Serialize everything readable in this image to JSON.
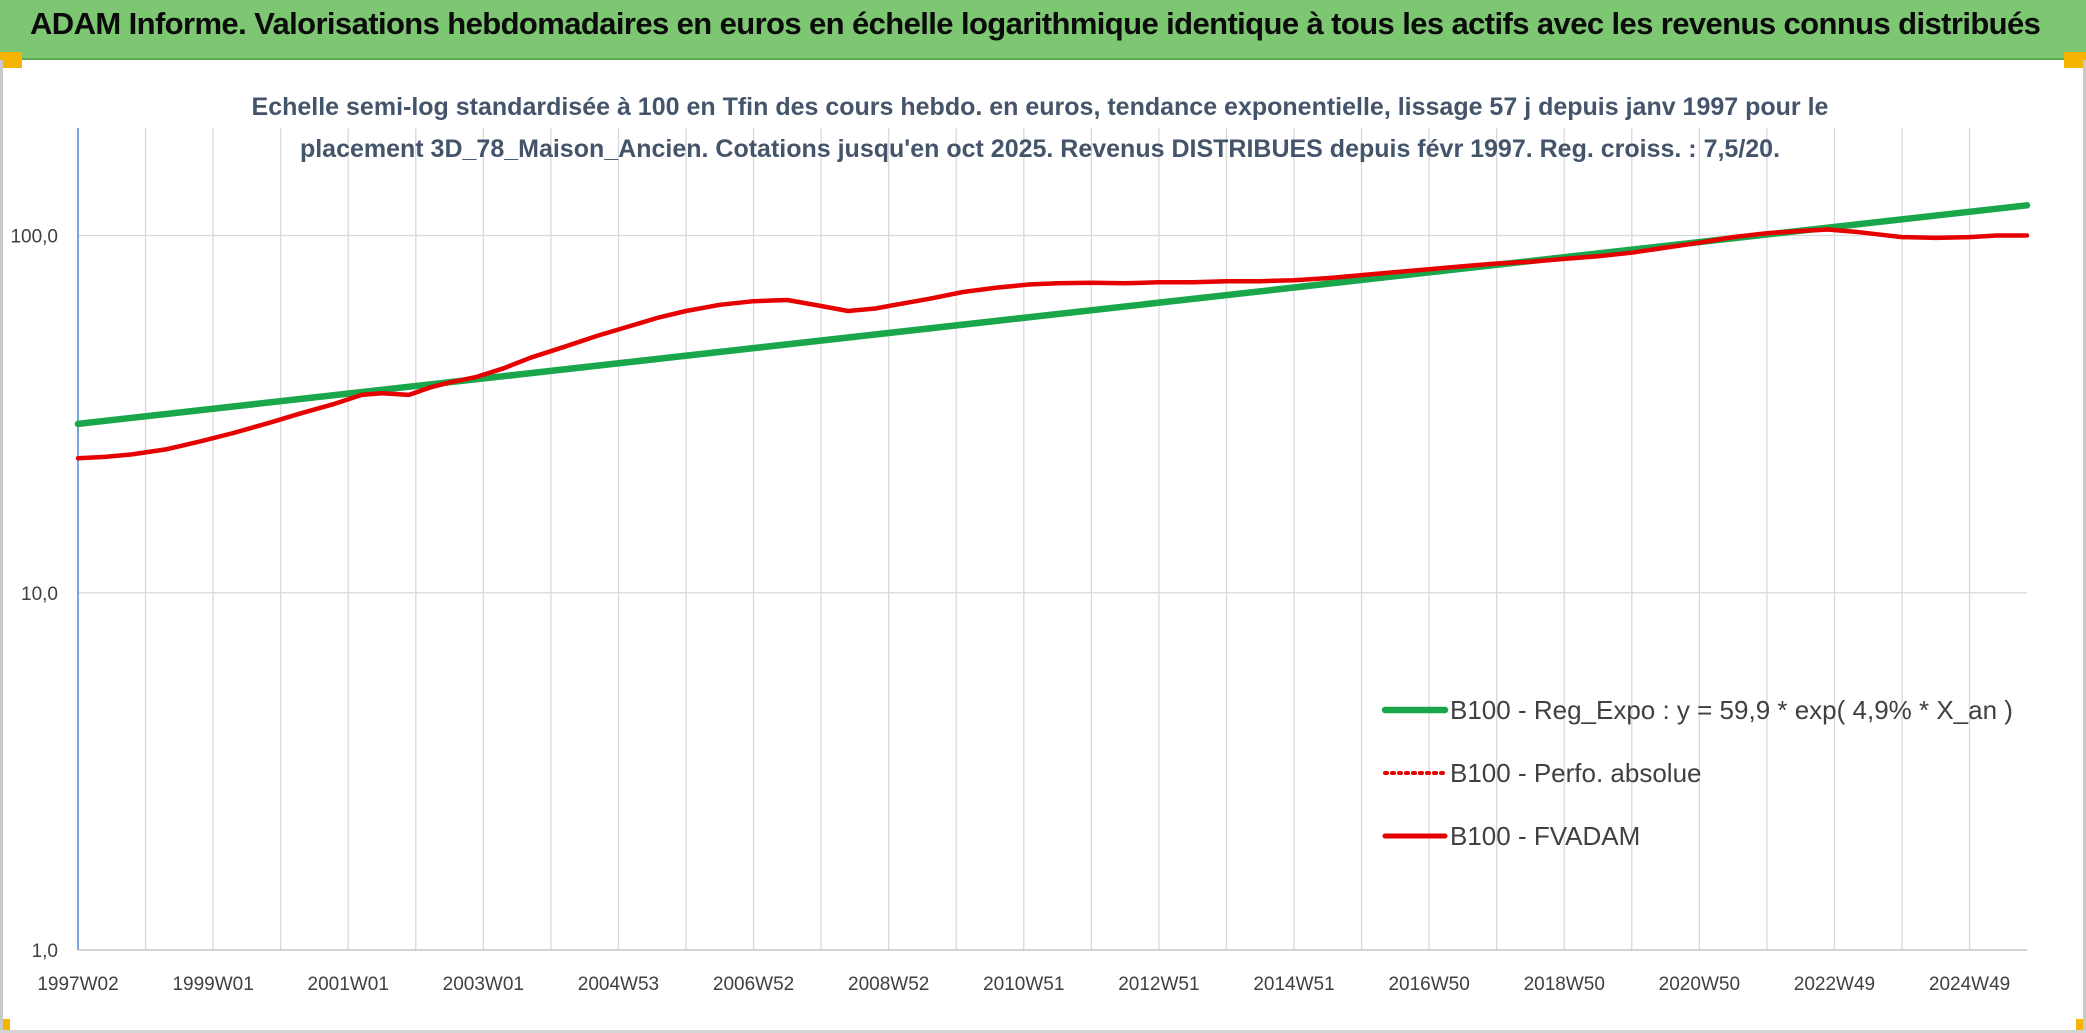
{
  "banner": {
    "title": "ADAM Informe. Valorisations hebdomadaires en euros en échelle logarithmique identique à tous les actifs avec les revenus connus distribués"
  },
  "colors": {
    "banner_bg": "#7dc672",
    "trend": "#1aa64b",
    "fvadam": "#e60000",
    "perfo": "#e60000",
    "grid": "#d9d9d9",
    "axis": "#5b8fd6"
  },
  "chart_data": {
    "type": "line",
    "scale": "log",
    "subtitle": [
      "Echelle semi-log standardisée à 100 en Tfin des cours hebdo. en euros, tendance exponentielle, lissage 57 j depuis janv 1997 pour le",
      "placement 3D_78_Maison_Ancien. Cotations jusqu'en oct 2025. Revenus DISTRIBUES depuis févr 1997. Reg. croiss. : 7,5/20."
    ],
    "xlim": [
      1997.0,
      2025.85
    ],
    "ylim": [
      1,
      200
    ],
    "y_ticks": [
      {
        "value": 1,
        "label": "1,0"
      },
      {
        "value": 10,
        "label": "10,0"
      },
      {
        "value": 100,
        "label": "100,0"
      }
    ],
    "x_ticks": [
      {
        "value": 1997.0,
        "label": "1997W02"
      },
      {
        "value": 1999.0,
        "label": "1999W01"
      },
      {
        "value": 2001.0,
        "label": "2001W01"
      },
      {
        "value": 2003.0,
        "label": "2003W01"
      },
      {
        "value": 2005.0,
        "label": "2004W53"
      },
      {
        "value": 2007.0,
        "label": "2006W52"
      },
      {
        "value": 2009.0,
        "label": "2008W52"
      },
      {
        "value": 2011.0,
        "label": "2010W51"
      },
      {
        "value": 2013.0,
        "label": "2012W51"
      },
      {
        "value": 2015.0,
        "label": "2014W51"
      },
      {
        "value": 2017.0,
        "label": "2016W50"
      },
      {
        "value": 2019.0,
        "label": "2018W50"
      },
      {
        "value": 2021.0,
        "label": "2020W50"
      },
      {
        "value": 2023.0,
        "label": "2022W49"
      },
      {
        "value": 2025.0,
        "label": "2024W49"
      }
    ],
    "grid_x_every_year": true,
    "legend_position": "bottom-right",
    "series": [
      {
        "name": "B100 - Reg_Expo : y = 59,9 * exp( 4,9% *  X_an )",
        "style": "solid-thick",
        "color": "#1aa64b",
        "x": [
          1997.0,
          2025.85
        ],
        "y": [
          29.7,
          121.5
        ]
      },
      {
        "name": "B100 - Perfo. absolue",
        "style": "dotted",
        "color": "#e60000",
        "x": [],
        "y": []
      },
      {
        "name": "B100 - FVADAM",
        "style": "solid",
        "color": "#e60000",
        "x": [
          1997.0,
          1997.4,
          1997.8,
          1998.3,
          1998.8,
          1999.3,
          1999.8,
          2000.3,
          2000.8,
          2001.2,
          2001.5,
          2001.9,
          2002.2,
          2002.5,
          2002.9,
          2003.3,
          2003.7,
          2004.2,
          2004.7,
          2005.2,
          2005.6,
          2006.0,
          2006.5,
          2007.0,
          2007.5,
          2008.0,
          2008.4,
          2008.8,
          2009.1,
          2009.6,
          2010.1,
          2010.6,
          2011.1,
          2011.5,
          2012.0,
          2012.5,
          2013.0,
          2013.5,
          2014.0,
          2014.5,
          2015.0,
          2015.5,
          2016.0,
          2016.5,
          2017.0,
          2017.5,
          2018.0,
          2018.5,
          2019.0,
          2019.5,
          2020.0,
          2020.5,
          2021.0,
          2021.5,
          2022.0,
          2022.5,
          2022.9,
          2023.3,
          2023.7,
          2024.0,
          2024.5,
          2025.0,
          2025.4,
          2025.85
        ],
        "y": [
          23.8,
          24.0,
          24.4,
          25.2,
          26.5,
          28.0,
          29.8,
          31.8,
          33.8,
          35.8,
          36.2,
          35.8,
          37.5,
          38.8,
          40.2,
          42.5,
          45.5,
          48.8,
          52.5,
          56.0,
          59.0,
          61.5,
          64.0,
          65.5,
          66.0,
          63.5,
          61.5,
          62.5,
          64.0,
          66.5,
          69.5,
          71.5,
          73.0,
          73.5,
          73.8,
          73.5,
          74.0,
          74.0,
          74.5,
          74.5,
          75.0,
          76.0,
          77.5,
          79.0,
          80.5,
          82.0,
          83.5,
          84.5,
          86.0,
          87.5,
          89.5,
          92.5,
          95.5,
          99.0,
          101.5,
          103.0,
          104.0,
          102.5,
          100.5,
          99.0,
          98.5,
          99.0,
          100.0,
          100.0
        ]
      }
    ]
  }
}
